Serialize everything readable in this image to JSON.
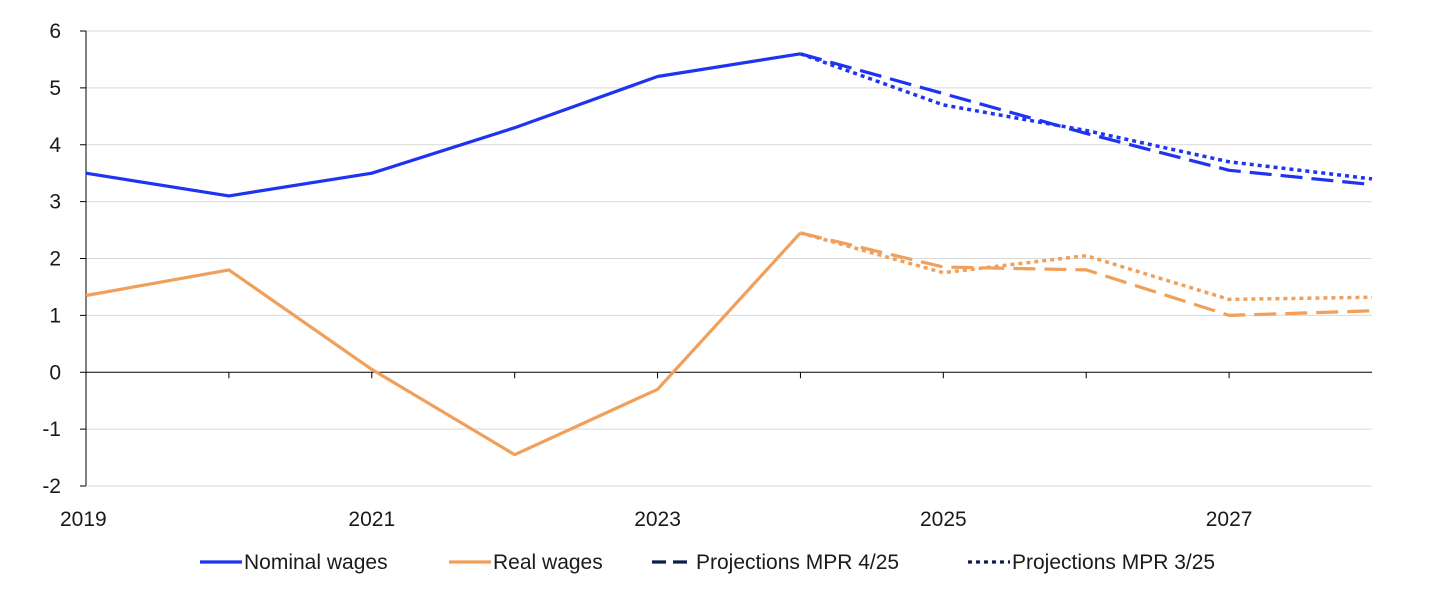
{
  "chart_data": {
    "type": "line",
    "title": "",
    "xlabel": "",
    "ylabel": "",
    "xlim": [
      2019,
      2028
    ],
    "ylim": [
      -2,
      6
    ],
    "yticks": [
      -2,
      -1,
      0,
      1,
      2,
      3,
      4,
      5,
      6
    ],
    "xticks": [
      2019,
      2021,
      2023,
      2025,
      2027
    ],
    "grid": "horizontal",
    "legend_position": "bottom",
    "colors": {
      "nominal": "#1f34f0",
      "real": "#f0a05a",
      "legend_marker": "#0b1e4e",
      "axis": "#000000",
      "grid": "#d9d9d9"
    },
    "series": [
      {
        "key": "nominal_hist",
        "name": "Nominal wages",
        "style": "solid",
        "color": "#1f34f0",
        "x": [
          2019,
          2020,
          2021,
          2022,
          2023,
          2024
        ],
        "values": [
          3.5,
          3.1,
          3.5,
          4.3,
          5.2,
          5.6
        ]
      },
      {
        "key": "real_hist",
        "name": "Real wages",
        "style": "solid",
        "color": "#f0a05a",
        "x": [
          2019,
          2020,
          2021,
          2022,
          2023,
          2024
        ],
        "values": [
          1.35,
          1.8,
          0.05,
          -1.45,
          -0.3,
          2.45
        ]
      },
      {
        "key": "nominal_mpr425",
        "name": "Nominal wages – Projections MPR 4/25",
        "style": "dashed",
        "color": "#1f34f0",
        "x": [
          2024,
          2025,
          2026,
          2027,
          2028
        ],
        "values": [
          5.6,
          4.9,
          4.2,
          3.55,
          3.3
        ]
      },
      {
        "key": "nominal_mpr325",
        "name": "Nominal wages – Projections MPR 3/25",
        "style": "dotted",
        "color": "#1f34f0",
        "x": [
          2024,
          2025,
          2026,
          2027,
          2028
        ],
        "values": [
          5.6,
          4.7,
          4.25,
          3.7,
          3.4
        ]
      },
      {
        "key": "real_mpr425",
        "name": "Real wages – Projections MPR 4/25",
        "style": "dashed",
        "color": "#f0a05a",
        "x": [
          2024,
          2025,
          2026,
          2027,
          2028
        ],
        "values": [
          2.45,
          1.85,
          1.8,
          1.0,
          1.08
        ]
      },
      {
        "key": "real_mpr325",
        "name": "Real wages – Projections MPR 3/25",
        "style": "dotted",
        "color": "#f0a05a",
        "x": [
          2024,
          2025,
          2026,
          2027,
          2028
        ],
        "values": [
          2.45,
          1.75,
          2.05,
          1.28,
          1.32
        ]
      }
    ],
    "legend": [
      {
        "label": "Nominal wages",
        "style": "solid",
        "color": "#1f34f0"
      },
      {
        "label": "Real wages",
        "style": "solid",
        "color": "#f0a05a"
      },
      {
        "label": "Projections MPR 4/25",
        "style": "dashed",
        "color": "#0b1e4e"
      },
      {
        "label": "Projections MPR 3/25",
        "style": "dotted",
        "color": "#0b1e4e"
      }
    ]
  }
}
